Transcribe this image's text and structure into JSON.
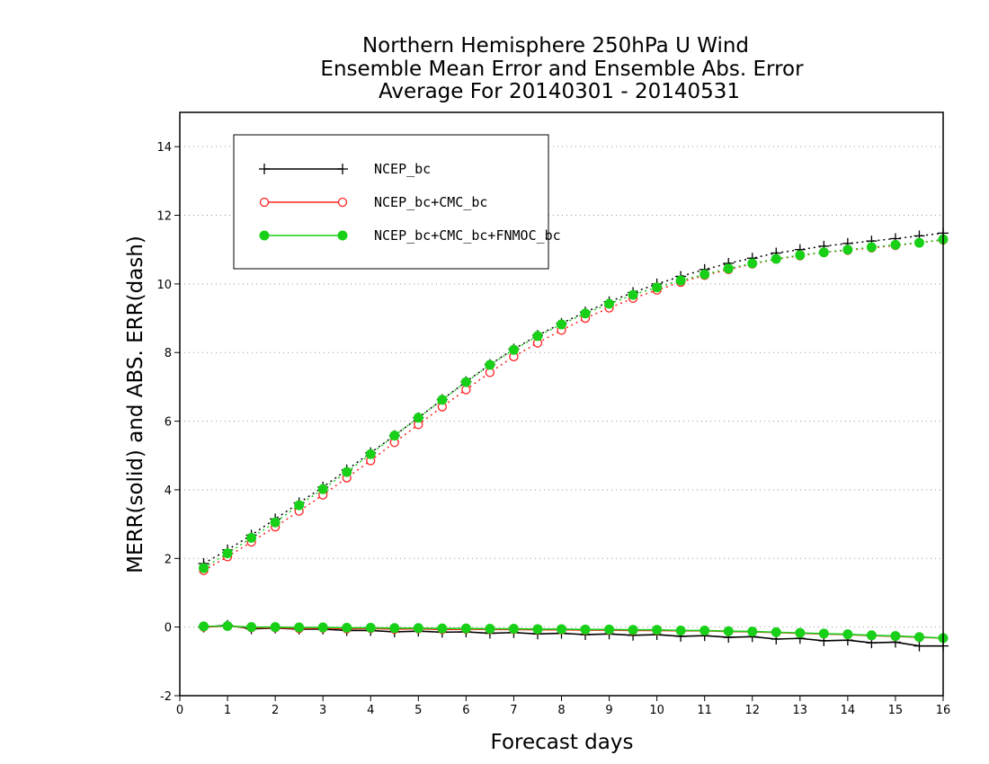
{
  "chart_data": {
    "type": "line",
    "title_lines": [
      "Northern Hemisphere 250hPa U Wind",
      "Ensemble Mean Error and Ensemble Abs. Error",
      "Average For 20140301 - 20140531"
    ],
    "xlabel": "Forecast days",
    "ylabel": "MERR(solid) and ABS. ERR(dash)",
    "xlim": [
      0,
      16
    ],
    "ylim": [
      -2,
      15
    ],
    "x_ticks": [
      0,
      1,
      2,
      3,
      4,
      5,
      6,
      7,
      8,
      9,
      10,
      11,
      12,
      13,
      14,
      15,
      16
    ],
    "y_ticks": [
      -2,
      0,
      2,
      4,
      6,
      8,
      10,
      12,
      14
    ],
    "grid": "horizontal dotted",
    "legend_position": "top-left",
    "x": [
      0.5,
      1,
      1.5,
      2,
      2.5,
      3,
      3.5,
      4,
      4.5,
      5,
      5.5,
      6,
      6.5,
      7,
      7.5,
      8,
      8.5,
      9,
      9.5,
      10,
      10.5,
      11,
      11.5,
      12,
      12.5,
      13,
      13.5,
      14,
      14.5,
      15,
      15.5,
      16
    ],
    "series": [
      {
        "name": "NCEP_bc",
        "color": "#000000",
        "marker": "plus",
        "merr": [
          0.0,
          0.05,
          -0.05,
          -0.03,
          -0.06,
          -0.06,
          -0.1,
          -0.1,
          -0.14,
          -0.12,
          -0.15,
          -0.14,
          -0.18,
          -0.16,
          -0.2,
          -0.18,
          -0.22,
          -0.2,
          -0.24,
          -0.22,
          -0.27,
          -0.25,
          -0.3,
          -0.28,
          -0.35,
          -0.33,
          -0.4,
          -0.38,
          -0.46,
          -0.44,
          -0.55,
          -0.55
        ],
        "abs_err": [
          1.85,
          2.25,
          2.68,
          3.15,
          3.62,
          4.08,
          4.58,
          5.08,
          5.58,
          6.1,
          6.63,
          7.15,
          7.65,
          8.1,
          8.5,
          8.85,
          9.18,
          9.48,
          9.75,
          10.0,
          10.22,
          10.42,
          10.6,
          10.75,
          10.9,
          11.0,
          11.1,
          11.18,
          11.25,
          11.32,
          11.4,
          11.48
        ]
      },
      {
        "name": "NCEP_bc+CMC_bc",
        "color": "#ff2020",
        "marker": "open-circle",
        "merr": [
          0.0,
          0.03,
          -0.02,
          -0.02,
          -0.04,
          -0.03,
          -0.05,
          -0.04,
          -0.06,
          -0.05,
          -0.07,
          -0.06,
          -0.07,
          -0.07,
          -0.08,
          -0.08,
          -0.09,
          -0.09,
          -0.1,
          -0.1,
          -0.11,
          -0.11,
          -0.13,
          -0.14,
          -0.16,
          -0.18,
          -0.2,
          -0.22,
          -0.25,
          -0.27,
          -0.3,
          -0.32
        ],
        "abs_err": [
          1.65,
          2.05,
          2.48,
          2.92,
          3.38,
          3.85,
          4.35,
          4.85,
          5.38,
          5.9,
          6.42,
          6.92,
          7.42,
          7.88,
          8.28,
          8.65,
          9.0,
          9.3,
          9.58,
          9.82,
          10.05,
          10.25,
          10.42,
          10.58,
          10.72,
          10.82,
          10.92,
          10.98,
          11.05,
          11.12,
          11.2,
          11.28
        ]
      },
      {
        "name": "NCEP_bc+CMC_bc+FNMOC_bc",
        "color": "#19d019",
        "marker": "filled-circle",
        "merr": [
          0.02,
          0.03,
          0.0,
          0.0,
          -0.01,
          -0.01,
          -0.02,
          -0.02,
          -0.03,
          -0.03,
          -0.04,
          -0.04,
          -0.05,
          -0.05,
          -0.06,
          -0.06,
          -0.07,
          -0.07,
          -0.08,
          -0.08,
          -0.1,
          -0.1,
          -0.12,
          -0.13,
          -0.15,
          -0.17,
          -0.19,
          -0.21,
          -0.24,
          -0.26,
          -0.29,
          -0.32
        ],
        "abs_err": [
          1.72,
          2.15,
          2.6,
          3.05,
          3.55,
          4.02,
          4.52,
          5.04,
          5.58,
          6.1,
          6.62,
          7.14,
          7.64,
          8.08,
          8.48,
          8.82,
          9.14,
          9.42,
          9.68,
          9.9,
          10.1,
          10.28,
          10.45,
          10.6,
          10.73,
          10.84,
          10.92,
          11.0,
          11.07,
          11.14,
          11.2,
          11.3
        ]
      }
    ]
  }
}
